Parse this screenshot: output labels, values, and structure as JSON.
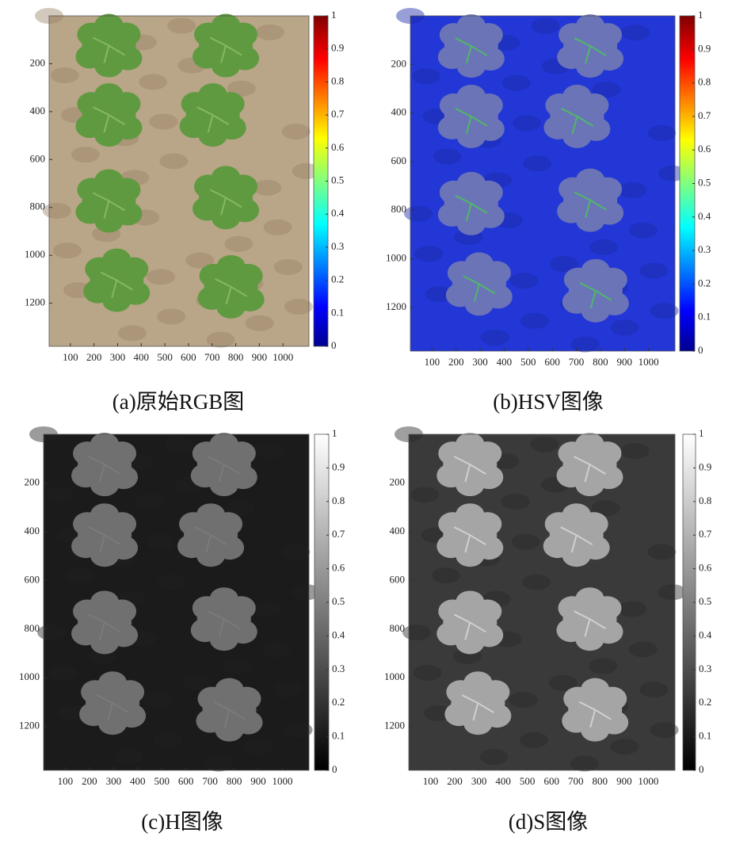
{
  "chart_data": [
    {
      "type": "image",
      "caption": "(a)原始RGB图",
      "xlim": [
        10,
        1110
      ],
      "ylim": [
        1380,
        0
      ],
      "xticks": [
        100,
        200,
        300,
        400,
        500,
        600,
        700,
        800,
        900,
        1000
      ],
      "yticks": [
        200,
        400,
        600,
        800,
        1000,
        1200
      ],
      "colormap": "jet",
      "clim": [
        0,
        1
      ],
      "cticks": [
        0,
        0.1,
        0.2,
        0.3,
        0.4,
        0.5,
        0.6,
        0.7,
        0.8,
        0.9,
        1
      ]
    },
    {
      "type": "image",
      "caption": "(b)HSV图像",
      "xlim": [
        10,
        1110
      ],
      "ylim": [
        1380,
        0
      ],
      "xticks": [
        100,
        200,
        300,
        400,
        500,
        600,
        700,
        800,
        900,
        1000
      ],
      "yticks": [
        200,
        400,
        600,
        800,
        1000,
        1200
      ],
      "colormap": "jet",
      "clim": [
        0,
        1
      ],
      "cticks": [
        0,
        0.1,
        0.2,
        0.3,
        0.4,
        0.5,
        0.6,
        0.7,
        0.8,
        0.9,
        1
      ]
    },
    {
      "type": "image",
      "caption": "(c)H图像",
      "xlim": [
        10,
        1110
      ],
      "ylim": [
        1380,
        0
      ],
      "xticks": [
        100,
        200,
        300,
        400,
        500,
        600,
        700,
        800,
        900,
        1000
      ],
      "yticks": [
        200,
        400,
        600,
        800,
        1000,
        1200
      ],
      "colormap": "gray",
      "clim": [
        0,
        1
      ],
      "cticks": [
        0,
        0.1,
        0.2,
        0.3,
        0.4,
        0.5,
        0.6,
        0.7,
        0.8,
        0.9,
        1
      ]
    },
    {
      "type": "image",
      "caption": "(d)S图像",
      "xlim": [
        10,
        1110
      ],
      "ylim": [
        1380,
        0
      ],
      "xticks": [
        100,
        200,
        300,
        400,
        500,
        600,
        700,
        800,
        900,
        1000
      ],
      "yticks": [
        200,
        400,
        600,
        800,
        1000,
        1200
      ],
      "colormap": "gray",
      "clim": [
        0,
        1
      ],
      "cticks": [
        0,
        0.1,
        0.2,
        0.3,
        0.4,
        0.5,
        0.6,
        0.7,
        0.8,
        0.9,
        1
      ]
    }
  ]
}
